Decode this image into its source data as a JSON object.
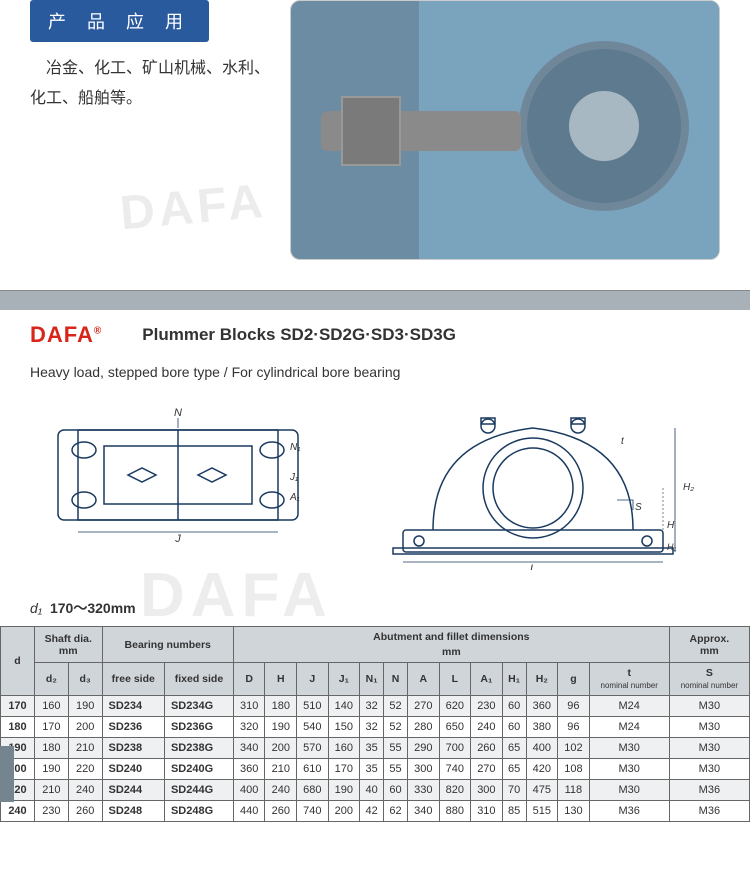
{
  "header": {
    "banner_label": "产 品 应 用",
    "cn_paragraph": "　冶金、化工、矿山机械、水利、化工、船舶等。"
  },
  "watermark_text": "DAFA",
  "brand_name": "DAFA",
  "product_title": "Plummer Blocks SD2·SD2G·SD3·SD3G",
  "subtitle": "Heavy load, stepped bore type / For cylindrical bore bearing",
  "diagram_labels": {
    "N": "N",
    "N1": "N₁",
    "J1": "J₁",
    "A1": "A₁",
    "J": "J",
    "t": "t",
    "S": "S",
    "H": "H",
    "H1": "H₁",
    "H2": "H₂",
    "L": "L"
  },
  "range_prefix": "d₁",
  "range_text": "170～320mm",
  "table": {
    "group_heads": {
      "shaft": "Shaft dia.",
      "bearing": "Bearing numbers",
      "abut": "Abutment and fillet dimensions",
      "approx": "Approx."
    },
    "unit_mm": "mm",
    "cols": [
      "d",
      "d₂",
      "d₃",
      "free side",
      "fixed side",
      "D",
      "H",
      "J",
      "J₁",
      "N₁",
      "N",
      "A",
      "L",
      "A₁",
      "H₁",
      "H₂",
      "g",
      "t",
      "S"
    ],
    "col_notes": {
      "t": "nominal number",
      "S": "nominal number"
    },
    "rows": [
      {
        "d": "170",
        "d2": "160",
        "d3": "190",
        "free": "SD234",
        "fixed": "SD234G",
        "D": "310",
        "H": "180",
        "J": "510",
        "J1": "140",
        "N1": "32",
        "N": "52",
        "A": "270",
        "L": "620",
        "A1": "230",
        "H1": "60",
        "H2": "360",
        "g": "96",
        "t": "M24",
        "S": "M30"
      },
      {
        "d": "180",
        "d2": "170",
        "d3": "200",
        "free": "SD236",
        "fixed": "SD236G",
        "D": "320",
        "H": "190",
        "J": "540",
        "J1": "150",
        "N1": "32",
        "N": "52",
        "A": "280",
        "L": "650",
        "A1": "240",
        "H1": "60",
        "H2": "380",
        "g": "96",
        "t": "M24",
        "S": "M30"
      },
      {
        "d": "190",
        "d2": "180",
        "d3": "210",
        "free": "SD238",
        "fixed": "SD238G",
        "D": "340",
        "H": "200",
        "J": "570",
        "J1": "160",
        "N1": "35",
        "N": "55",
        "A": "290",
        "L": "700",
        "A1": "260",
        "H1": "65",
        "H2": "400",
        "g": "102",
        "t": "M30",
        "S": "M30"
      },
      {
        "d": "200",
        "d2": "190",
        "d3": "220",
        "free": "SD240",
        "fixed": "SD240G",
        "D": "360",
        "H": "210",
        "J": "610",
        "J1": "170",
        "N1": "35",
        "N": "55",
        "A": "300",
        "L": "740",
        "A1": "270",
        "H1": "65",
        "H2": "420",
        "g": "108",
        "t": "M30",
        "S": "M30"
      },
      {
        "d": "220",
        "d2": "210",
        "d3": "240",
        "free": "SD244",
        "fixed": "SD244G",
        "D": "400",
        "H": "240",
        "J": "680",
        "J1": "190",
        "N1": "40",
        "N": "60",
        "A": "330",
        "L": "820",
        "A1": "300",
        "H1": "70",
        "H2": "475",
        "g": "118",
        "t": "M30",
        "S": "M36"
      },
      {
        "d": "240",
        "d2": "230",
        "d3": "260",
        "free": "SD248",
        "fixed": "SD248G",
        "D": "440",
        "H": "260",
        "J": "740",
        "J1": "200",
        "N1": "42",
        "N": "62",
        "A": "340",
        "L": "880",
        "A1": "310",
        "H1": "85",
        "H2": "515",
        "g": "130",
        "t": "M36",
        "S": "M36"
      }
    ]
  },
  "colors": {
    "banner_bg": "#2a5a9e",
    "brand": "#d8261c",
    "gray_bar": "#a8b0b8",
    "th_bg": "#d0d5d9",
    "row_odd": "#eef0f2",
    "border": "#666666",
    "diagram_stroke": "#1a3a5f"
  }
}
